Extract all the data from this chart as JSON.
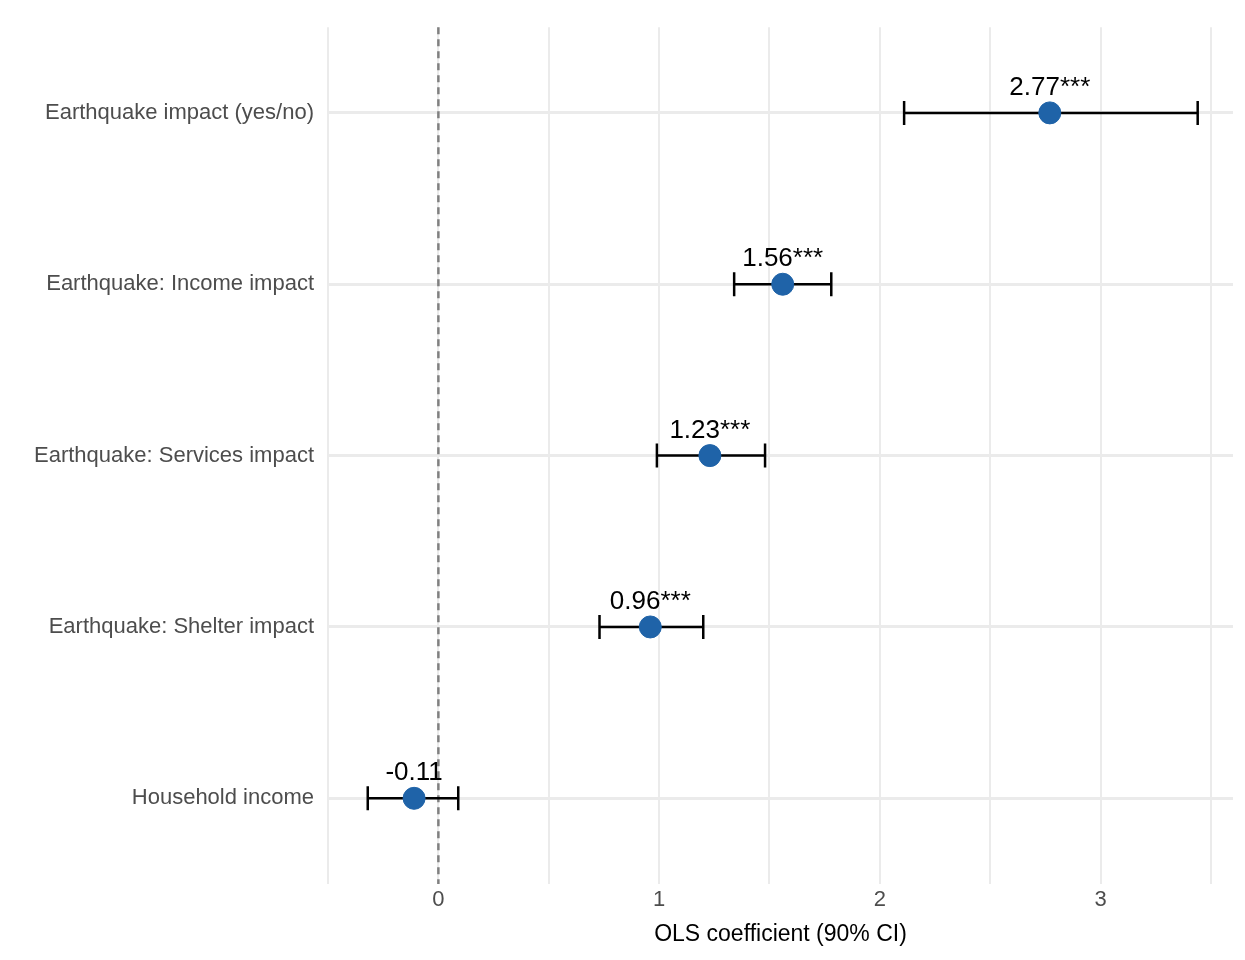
{
  "chart_data": {
    "type": "scatter",
    "orientation": "horizontal",
    "xlabel": "OLS coefficient (90% CI)",
    "categories": [
      "Earthquake impact (yes/no)",
      "Earthquake: Income impact",
      "Earthquake: Services impact",
      "Earthquake: Shelter impact",
      "Household income"
    ],
    "values": [
      2.77,
      1.56,
      1.23,
      0.96,
      -0.11
    ],
    "errors": [
      [
        2.11,
        3.44
      ],
      [
        1.34,
        1.78
      ],
      [
        0.99,
        1.48
      ],
      [
        0.73,
        1.2
      ],
      [
        -0.32,
        0.09
      ]
    ],
    "value_labels": [
      "2.77***",
      "1.56***",
      "1.23***",
      "0.96***",
      "-0.11"
    ],
    "color": "#1f63a8",
    "marker": "circle",
    "xlim": [
      -0.5,
      3.6
    ],
    "xticks": [
      {
        "value": -0.5,
        "label": null
      },
      0,
      {
        "value": 0.5,
        "label": null
      },
      1,
      {
        "value": 1.5,
        "label": null
      },
      2,
      {
        "value": 2.5,
        "label": null
      },
      3,
      {
        "value": 3.5,
        "label": null
      }
    ],
    "ref_lines": [
      {
        "axis": "x",
        "value": 0,
        "color": "#808080",
        "line_style": "dashed"
      }
    ],
    "grid": true
  }
}
